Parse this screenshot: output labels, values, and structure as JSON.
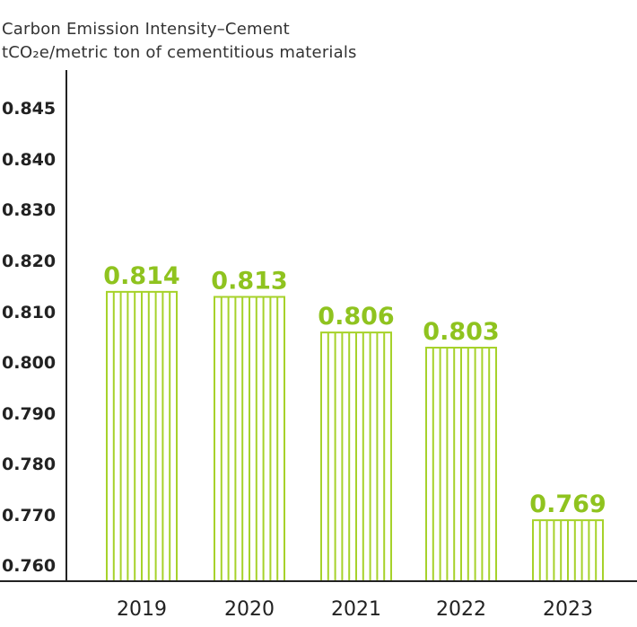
{
  "chart_data": {
    "type": "bar",
    "title": "Carbon Emission Intensity–Cement",
    "subtitle": "tCO₂e/metric ton of cementitious materials",
    "xlabel": "",
    "ylabel": "",
    "categories": [
      "2019",
      "2020",
      "2021",
      "2022",
      "2023"
    ],
    "values": [
      0.814,
      0.813,
      0.806,
      0.803,
      0.769
    ],
    "data_labels": [
      "0.814",
      "0.813",
      "0.806",
      "0.803",
      "0.769"
    ],
    "y_tick_labels": [
      "0.845",
      "0.840",
      "0.830",
      "0.820",
      "0.810",
      "0.800",
      "0.790",
      "0.780",
      "0.770",
      "0.760"
    ],
    "grid": false,
    "legend": "none",
    "colors": {
      "bar": "#a6d22a",
      "label": "#8fc31f",
      "axis": "#222222"
    }
  }
}
